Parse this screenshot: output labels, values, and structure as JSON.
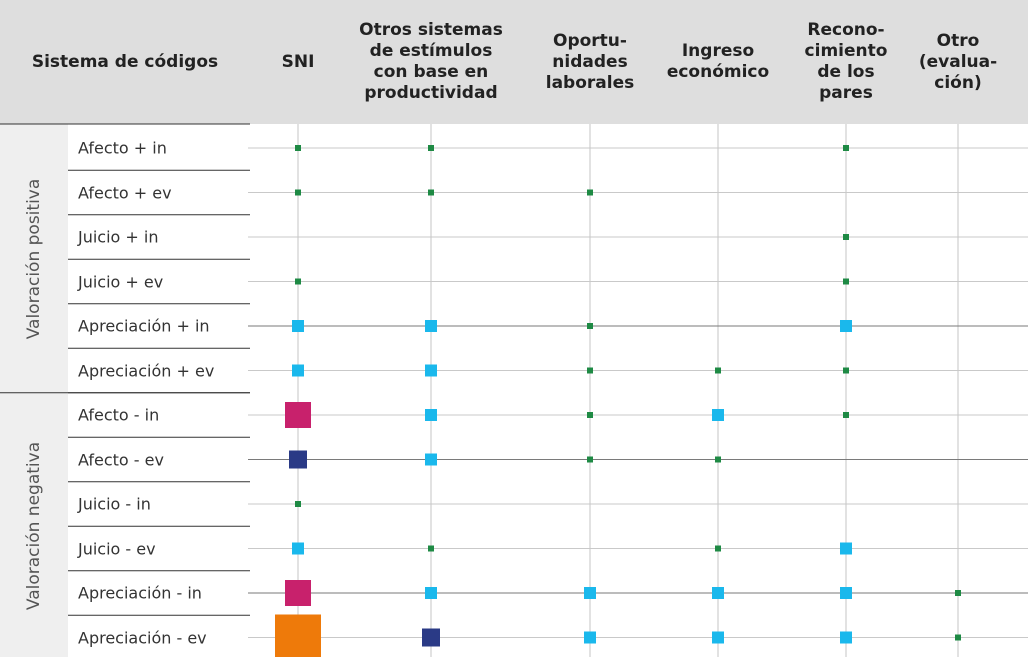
{
  "chart_data": {
    "type": "heatmap",
    "corner_label": "Sistema de códigos",
    "columns": [
      "SNI",
      "Otros sistemas\nde estímulos\ncon base en\nproductividad",
      "Oportu-\nnidades\nlaborales",
      "Ingreso\neconómico",
      "Recono-\ncimiento\nde los\npares",
      "Otro\n(evalua-\nción)"
    ],
    "groups": [
      {
        "label": "Valoración positiva",
        "rows": [
          0,
          5
        ]
      },
      {
        "label": "Valoración negativa",
        "rows": [
          6,
          11
        ]
      }
    ],
    "rows": [
      "Afecto + in",
      "Afecto + ev",
      "Juicio + in",
      "Juicio + ev",
      "Apreciación + in",
      "Apreciación + ev",
      "Afecto - in",
      "Afecto - ev",
      "Juicio - in",
      "Juicio - ev",
      "Apreciación - in",
      "Apreciación - ev"
    ],
    "levels": [
      {
        "level": 1,
        "color": "#1e8a44"
      },
      {
        "level": 2,
        "color": "#1ab8ec"
      },
      {
        "level": 3,
        "color": "#2a3a86"
      },
      {
        "level": 4,
        "color": "#c8216c"
      },
      {
        "level": 5,
        "color": "#ee7a0a"
      }
    ],
    "values": [
      [
        1,
        1,
        0,
        0,
        1,
        0
      ],
      [
        1,
        1,
        1,
        0,
        0,
        0
      ],
      [
        0,
        0,
        0,
        0,
        1,
        0
      ],
      [
        1,
        0,
        0,
        0,
        1,
        0
      ],
      [
        2,
        2,
        1,
        0,
        2,
        0
      ],
      [
        2,
        2,
        1,
        1,
        1,
        0
      ],
      [
        4,
        2,
        1,
        2,
        1,
        0
      ],
      [
        3,
        2,
        1,
        1,
        0,
        0
      ],
      [
        1,
        0,
        0,
        0,
        0,
        0
      ],
      [
        2,
        1,
        0,
        1,
        2,
        0
      ],
      [
        4,
        2,
        2,
        2,
        2,
        1
      ],
      [
        5,
        3,
        2,
        2,
        2,
        1
      ]
    ]
  }
}
